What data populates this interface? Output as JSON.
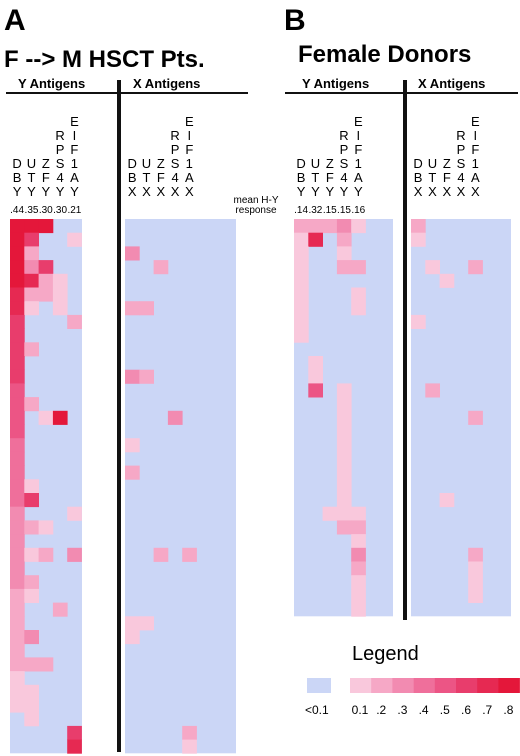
{
  "colors": {
    "below": "#cbd6f6",
    "scale": [
      "#f9c8dc",
      "#f6a8c6",
      "#f28bb1",
      "#ef6f9b",
      "#ec5585",
      "#e83d6c",
      "#e62952",
      "#e4173a"
    ]
  },
  "panels": [
    {
      "letter": "A",
      "title": "F --> M HSCT Pts.",
      "y_group": "Y Antigens",
      "x_group": "X Antigens",
      "y_genes": [
        [
          "D",
          "B",
          "Y"
        ],
        [
          "U",
          "T",
          "Y"
        ],
        [
          "Z",
          "F",
          "Y"
        ],
        [
          "R",
          "P",
          "S",
          "4",
          "Y"
        ],
        [
          "E",
          "I",
          "F",
          "1",
          "A",
          "Y"
        ]
      ],
      "x_genes": [
        [
          "D",
          "B",
          "X"
        ],
        [
          "U",
          "T",
          "X"
        ],
        [
          "Z",
          "F",
          "X"
        ],
        [
          "R",
          "P",
          "S",
          "4",
          "X"
        ],
        [
          "E",
          "I",
          "F",
          "1",
          "A",
          "X"
        ]
      ],
      "means": [
        ".44",
        ".35",
        ".30",
        ".30",
        ".21"
      ]
    },
    {
      "letter": "B",
      "title": "Female Donors",
      "y_group": "Y Antigens",
      "x_group": "X Antigens",
      "y_genes": [
        [
          "D",
          "B",
          "Y"
        ],
        [
          "U",
          "T",
          "Y"
        ],
        [
          "Z",
          "F",
          "Y"
        ],
        [
          "R",
          "P",
          "S",
          "4",
          "Y"
        ],
        [
          "E",
          "I",
          "F",
          "1",
          "A",
          "Y"
        ]
      ],
      "x_genes": [
        [
          "D",
          "B",
          "X"
        ],
        [
          "U",
          "T",
          "X"
        ],
        [
          "Z",
          "F",
          "X"
        ],
        [
          "R",
          "P",
          "S",
          "4",
          "X"
        ],
        [
          "E",
          "I",
          "F",
          "1",
          "A",
          "X"
        ]
      ],
      "means": [
        ".14",
        ".32",
        ".15",
        ".15",
        ".16"
      ]
    }
  ],
  "mean_label_1": "mean H-Y",
  "mean_label_2": "response",
  "legend": {
    "title": "Legend",
    "below_label": "<0.1",
    "tick_labels": [
      "0.1",
      ".2",
      ".3",
      ".4",
      ".5",
      ".6",
      ".7",
      ".8"
    ]
  },
  "chart_data": [
    {
      "type": "heatmap",
      "title": "F --> M HSCT Pts.",
      "columns": [
        "DBY",
        "UTY",
        "ZFY",
        "RPS4Y",
        "EIF1AY",
        "DBX",
        "UTX",
        "ZFX",
        "RPS4X",
        "EIF1AX"
      ],
      "mean_response_Y": [
        0.44,
        0.35,
        0.3,
        0.3,
        0.21
      ],
      "rows": [
        [
          0.8,
          0.8,
          0.8,
          0,
          0,
          0,
          0,
          0,
          0,
          0
        ],
        [
          0.8,
          0.6,
          0,
          0,
          0.1,
          0,
          0,
          0,
          0,
          0
        ],
        [
          0.8,
          0.2,
          0,
          0,
          0,
          0.3,
          0,
          0,
          0,
          0
        ],
        [
          0.8,
          0.3,
          0.6,
          0,
          0,
          0,
          0,
          0.2,
          0,
          0
        ],
        [
          0.8,
          0.7,
          0.2,
          0.1,
          0,
          0,
          0,
          0,
          0,
          0
        ],
        [
          0.7,
          0.2,
          0.2,
          0.1,
          0,
          0,
          0,
          0,
          0,
          0
        ],
        [
          0.7,
          0.1,
          0,
          0.1,
          0,
          0.2,
          0.2,
          0,
          0,
          0
        ],
        [
          0.6,
          0,
          0,
          0,
          0.2,
          0,
          0,
          0,
          0,
          0
        ],
        [
          0.6,
          0,
          0,
          0,
          0,
          0,
          0,
          0,
          0,
          0
        ],
        [
          0.6,
          0.2,
          0,
          0,
          0,
          0,
          0,
          0,
          0,
          0
        ],
        [
          0.6,
          0,
          0,
          0,
          0,
          0,
          0,
          0,
          0,
          0
        ],
        [
          0.6,
          0,
          0,
          0,
          0,
          0.3,
          0.2,
          0,
          0,
          0
        ],
        [
          0.5,
          0,
          0,
          0,
          0,
          0,
          0,
          0,
          0,
          0
        ],
        [
          0.5,
          0.2,
          0,
          0,
          0,
          0,
          0,
          0,
          0,
          0
        ],
        [
          0.5,
          0,
          0.1,
          0.8,
          0,
          0,
          0,
          0,
          0.3,
          0
        ],
        [
          0.5,
          0,
          0,
          0,
          0,
          0,
          0,
          0,
          0,
          0
        ],
        [
          0.4,
          0,
          0,
          0,
          0,
          0.1,
          0,
          0,
          0,
          0
        ],
        [
          0.4,
          0,
          0,
          0,
          0,
          0,
          0,
          0,
          0,
          0
        ],
        [
          0.4,
          0,
          0,
          0,
          0,
          0.2,
          0,
          0,
          0,
          0
        ],
        [
          0.4,
          0.1,
          0,
          0,
          0,
          0,
          0,
          0,
          0,
          0
        ],
        [
          0.4,
          0.6,
          0,
          0,
          0,
          0,
          0,
          0,
          0,
          0
        ],
        [
          0.3,
          0,
          0,
          0,
          0.1,
          0,
          0,
          0,
          0,
          0
        ],
        [
          0.3,
          0.2,
          0.1,
          0,
          0,
          0,
          0,
          0,
          0,
          0
        ],
        [
          0.3,
          0,
          0,
          0,
          0,
          0,
          0,
          0,
          0,
          0
        ],
        [
          0.3,
          0.1,
          0.2,
          0,
          0.3,
          0,
          0,
          0.2,
          0,
          0.2
        ],
        [
          0.3,
          0,
          0,
          0,
          0,
          0,
          0,
          0,
          0,
          0
        ],
        [
          0.3,
          0.2,
          0,
          0,
          0,
          0,
          0,
          0,
          0,
          0
        ],
        [
          0.2,
          0.1,
          0,
          0,
          0,
          0,
          0,
          0,
          0,
          0
        ],
        [
          0.2,
          0,
          0,
          0.2,
          0,
          0,
          0,
          0,
          0,
          0
        ],
        [
          0.2,
          0,
          0,
          0,
          0,
          0.1,
          0.1,
          0,
          0,
          0
        ],
        [
          0.2,
          0.3,
          0,
          0,
          0,
          0.1,
          0,
          0,
          0,
          0
        ],
        [
          0.2,
          0,
          0,
          0,
          0,
          0,
          0,
          0,
          0,
          0
        ],
        [
          0.2,
          0.2,
          0.2,
          0,
          0,
          0,
          0,
          0,
          0,
          0
        ],
        [
          0.1,
          0,
          0,
          0,
          0,
          0,
          0,
          0,
          0,
          0
        ],
        [
          0.1,
          0.1,
          0,
          0,
          0,
          0,
          0,
          0,
          0,
          0
        ],
        [
          0.1,
          0.1,
          0,
          0,
          0,
          0,
          0,
          0,
          0,
          0
        ],
        [
          0,
          0.1,
          0,
          0,
          0,
          0,
          0,
          0,
          0,
          0
        ],
        [
          0,
          0,
          0,
          0,
          0.6,
          0,
          0,
          0,
          0,
          0.2
        ],
        [
          0,
          0,
          0,
          0,
          0.7,
          0,
          0,
          0,
          0,
          0.1
        ]
      ]
    },
    {
      "type": "heatmap",
      "title": "Female Donors",
      "columns": [
        "DBY",
        "UTY",
        "ZFY",
        "RPS4Y",
        "EIF1AY",
        "DBX",
        "UTX",
        "ZFX",
        "RPS4X",
        "EIF1AX"
      ],
      "mean_response_Y": [
        0.14,
        0.32,
        0.15,
        0.15,
        0.16
      ],
      "rows": [
        [
          0.2,
          0.2,
          0.2,
          0.3,
          0.1,
          0.2,
          0,
          0,
          0,
          0
        ],
        [
          0.1,
          0.7,
          0,
          0.2,
          0,
          0.1,
          0,
          0,
          0,
          0
        ],
        [
          0.1,
          0,
          0,
          0.1,
          0,
          0,
          0,
          0,
          0,
          0
        ],
        [
          0.1,
          0,
          0,
          0.2,
          0.2,
          0,
          0.1,
          0,
          0,
          0.2
        ],
        [
          0.1,
          0,
          0,
          0,
          0,
          0,
          0,
          0.1,
          0,
          0
        ],
        [
          0.1,
          0,
          0,
          0,
          0.1,
          0,
          0,
          0,
          0,
          0
        ],
        [
          0.1,
          0,
          0,
          0,
          0.1,
          0,
          0,
          0,
          0,
          0
        ],
        [
          0.1,
          0,
          0,
          0,
          0,
          0.1,
          0,
          0,
          0,
          0
        ],
        [
          0.1,
          0,
          0,
          0,
          0,
          0,
          0,
          0,
          0,
          0
        ],
        [
          0,
          0,
          0,
          0,
          0,
          0,
          0,
          0,
          0,
          0
        ],
        [
          0,
          0.1,
          0,
          0,
          0,
          0,
          0,
          0,
          0,
          0
        ],
        [
          0,
          0.1,
          0,
          0,
          0,
          0,
          0,
          0,
          0,
          0
        ],
        [
          0,
          0.5,
          0,
          0.1,
          0,
          0,
          0.2,
          0,
          0,
          0
        ],
        [
          0,
          0,
          0,
          0.1,
          0,
          0,
          0,
          0,
          0,
          0
        ],
        [
          0,
          0,
          0,
          0.1,
          0,
          0,
          0,
          0,
          0,
          0.2
        ],
        [
          0,
          0,
          0,
          0.1,
          0,
          0,
          0,
          0,
          0,
          0
        ],
        [
          0,
          0,
          0,
          0.1,
          0,
          0,
          0,
          0,
          0,
          0
        ],
        [
          0,
          0,
          0,
          0.1,
          0,
          0,
          0,
          0,
          0,
          0
        ],
        [
          0,
          0,
          0,
          0.1,
          0,
          0,
          0,
          0,
          0,
          0
        ],
        [
          0,
          0,
          0,
          0.1,
          0,
          0,
          0,
          0,
          0,
          0
        ],
        [
          0,
          0,
          0,
          0.1,
          0,
          0,
          0,
          0.1,
          0,
          0
        ],
        [
          0,
          0,
          0.1,
          0.1,
          0.1,
          0,
          0,
          0,
          0,
          0
        ],
        [
          0,
          0,
          0,
          0.2,
          0.2,
          0,
          0,
          0,
          0,
          0
        ],
        [
          0,
          0,
          0,
          0,
          0.1,
          0,
          0,
          0,
          0,
          0
        ],
        [
          0,
          0,
          0,
          0,
          0.3,
          0,
          0,
          0,
          0,
          0.2
        ],
        [
          0,
          0,
          0,
          0,
          0.2,
          0,
          0,
          0,
          0,
          0.1
        ],
        [
          0,
          0,
          0,
          0,
          0.1,
          0,
          0,
          0,
          0,
          0.1
        ],
        [
          0,
          0,
          0,
          0,
          0.1,
          0,
          0,
          0,
          0,
          0.1
        ],
        [
          0,
          0,
          0,
          0,
          0.1,
          0,
          0,
          0,
          0,
          0
        ]
      ]
    }
  ]
}
